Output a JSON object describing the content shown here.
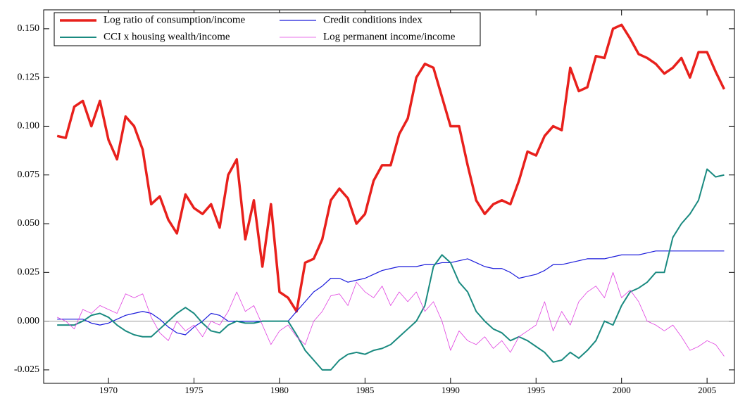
{
  "chart_data": {
    "type": "line",
    "x": [
      1967,
      1967.5,
      1968,
      1968.5,
      1969,
      1969.5,
      1970,
      1970.5,
      1971,
      1971.5,
      1972,
      1972.5,
      1973,
      1973.5,
      1974,
      1974.5,
      1975,
      1975.5,
      1976,
      1976.5,
      1977,
      1977.5,
      1978,
      1978.5,
      1979,
      1979.5,
      1980,
      1980.5,
      1981,
      1981.5,
      1982,
      1982.5,
      1983,
      1983.5,
      1984,
      1984.5,
      1985,
      1985.5,
      1986,
      1986.5,
      1987,
      1987.5,
      1988,
      1988.5,
      1989,
      1989.5,
      1990,
      1990.5,
      1991,
      1991.5,
      1992,
      1992.5,
      1993,
      1993.5,
      1994,
      1994.5,
      1995,
      1995.5,
      1996,
      1996.5,
      1997,
      1997.5,
      1998,
      1998.5,
      1999,
      1999.5,
      2000,
      2000.5,
      2001,
      2001.5,
      2002,
      2002.5,
      2003,
      2003.5,
      2004,
      2004.5,
      2005,
      2005.5,
      2006
    ],
    "series": [
      {
        "name": "Log ratio of consumption/income",
        "color": "#e8201c",
        "width": 3.5,
        "values": [
          0.095,
          0.094,
          0.11,
          0.113,
          0.1,
          0.113,
          0.093,
          0.083,
          0.105,
          0.1,
          0.088,
          0.06,
          0.064,
          0.052,
          0.045,
          0.065,
          0.058,
          0.055,
          0.06,
          0.048,
          0.075,
          0.083,
          0.042,
          0.062,
          0.028,
          0.06,
          0.015,
          0.012,
          0.005,
          0.03,
          0.032,
          0.042,
          0.062,
          0.068,
          0.063,
          0.05,
          0.055,
          0.072,
          0.08,
          0.08,
          0.096,
          0.104,
          0.125,
          0.132,
          0.13,
          0.115,
          0.1,
          0.1,
          0.08,
          0.062,
          0.055,
          0.06,
          0.062,
          0.06,
          0.072,
          0.087,
          0.085,
          0.095,
          0.1,
          0.098,
          0.13,
          0.118,
          0.12,
          0.136,
          0.135,
          0.15,
          0.152,
          0.145,
          0.137,
          0.135,
          0.132,
          0.127,
          0.13,
          0.135,
          0.125,
          0.138,
          0.138,
          0.128,
          0.119
        ]
      },
      {
        "name": "Credit conditions index",
        "color": "#1a1adb",
        "width": 1.2,
        "values": [
          0.001,
          0.001,
          0.001,
          0.001,
          -0.001,
          -0.002,
          -0.001,
          0.001,
          0.003,
          0.004,
          0.005,
          0.004,
          0.001,
          -0.003,
          -0.006,
          -0.007,
          -0.003,
          0,
          0.004,
          0.003,
          0,
          0,
          0,
          0,
          0,
          0,
          0,
          0,
          0.005,
          0.01,
          0.015,
          0.018,
          0.022,
          0.022,
          0.02,
          0.021,
          0.022,
          0.024,
          0.026,
          0.027,
          0.028,
          0.028,
          0.028,
          0.029,
          0.029,
          0.03,
          0.03,
          0.031,
          0.032,
          0.03,
          0.028,
          0.027,
          0.027,
          0.025,
          0.022,
          0.023,
          0.024,
          0.026,
          0.029,
          0.029,
          0.03,
          0.031,
          0.032,
          0.032,
          0.032,
          0.033,
          0.034,
          0.034,
          0.034,
          0.035,
          0.036,
          0.036,
          0.036,
          0.036,
          0.036,
          0.036,
          0.036,
          0.036,
          0.036
        ]
      },
      {
        "name": "CCI x housing wealth/income",
        "color": "#1a8a80",
        "width": 2,
        "values": [
          -0.002,
          -0.002,
          -0.002,
          0,
          0.003,
          0.004,
          0.002,
          -0.002,
          -0.005,
          -0.007,
          -0.008,
          -0.008,
          -0.004,
          0,
          0.004,
          0.007,
          0.004,
          -0.001,
          -0.005,
          -0.006,
          -0.002,
          0,
          -0.001,
          -0.001,
          0,
          0,
          0,
          0,
          -0.007,
          -0.015,
          -0.02,
          -0.025,
          -0.025,
          -0.02,
          -0.017,
          -0.016,
          -0.017,
          -0.015,
          -0.014,
          -0.012,
          -0.008,
          -0.004,
          0,
          0.008,
          0.028,
          0.034,
          0.03,
          0.02,
          0.015,
          0.005,
          0,
          -0.004,
          -0.006,
          -0.01,
          -0.008,
          -0.01,
          -0.013,
          -0.016,
          -0.021,
          -0.02,
          -0.016,
          -0.019,
          -0.015,
          -0.01,
          0,
          -0.002,
          0.008,
          0.015,
          0.017,
          0.02,
          0.025,
          0.025,
          0.043,
          0.05,
          0.055,
          0.062,
          0.078,
          0.074,
          0.075
        ]
      },
      {
        "name": "Log permanent income/income",
        "color": "#e040e0",
        "width": 0.8,
        "values": [
          0.002,
          0,
          -0.004,
          0.006,
          0.004,
          0.008,
          0.006,
          0.004,
          0.014,
          0.012,
          0.014,
          0.002,
          -0.006,
          -0.01,
          0,
          -0.005,
          -0.002,
          -0.008,
          0,
          -0.002,
          0.005,
          0.015,
          0.005,
          0.008,
          -0.002,
          -0.012,
          -0.005,
          -0.002,
          -0.008,
          -0.012,
          0,
          0.005,
          0.013,
          0.014,
          0.008,
          0.02,
          0.015,
          0.012,
          0.018,
          0.008,
          0.015,
          0.01,
          0.015,
          0.005,
          0.01,
          0,
          -0.015,
          -0.005,
          -0.01,
          -0.012,
          -0.008,
          -0.014,
          -0.01,
          -0.016,
          -0.008,
          -0.005,
          -0.002,
          0.01,
          -0.005,
          0.005,
          -0.002,
          0.01,
          0.015,
          0.018,
          0.012,
          0.025,
          0.012,
          0.016,
          0.01,
          0,
          -0.002,
          -0.005,
          -0.002,
          -0.008,
          -0.015,
          -0.013,
          -0.01,
          -0.012,
          -0.018
        ]
      }
    ],
    "xlim": [
      1966.21,
      2006.6
    ],
    "xticks": [
      1970,
      1975,
      1980,
      1985,
      1990,
      1995,
      2000,
      2005
    ],
    "ylim": [
      -0.0319,
      0.1597
    ],
    "yticks": [
      {
        "value": 0.15,
        "label": "0.150"
      },
      0.125,
      {
        "value": 0.1,
        "label": "0.100"
      },
      0.075,
      {
        "value": 0.05,
        "label": "0.050"
      },
      0.025,
      {
        "value": 0,
        "label": "0.000"
      },
      -0.025
    ],
    "zero_line": true,
    "legend": "upper left"
  }
}
